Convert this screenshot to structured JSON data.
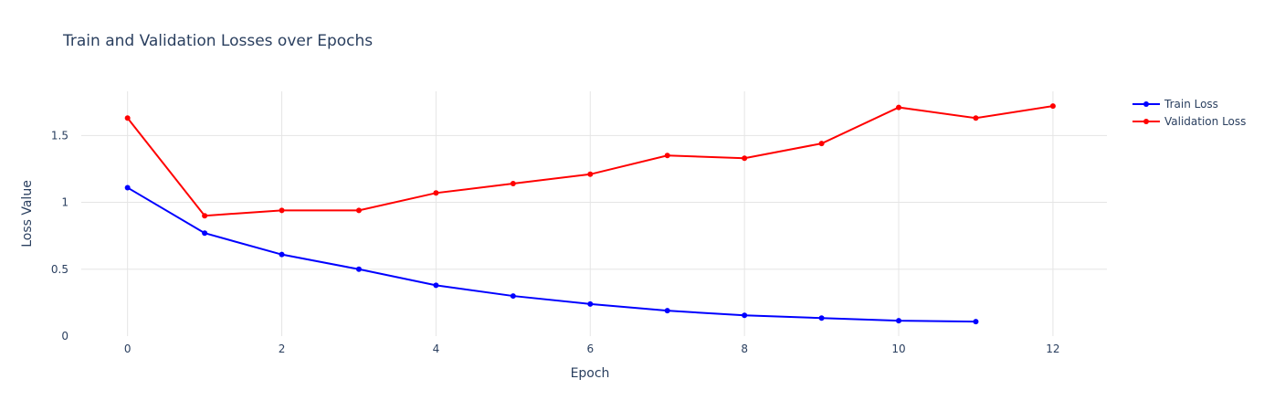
{
  "chart_data": {
    "type": "line",
    "title": "Train and Validation Losses over Epochs",
    "xlabel": "Epoch",
    "ylabel": "Loss Value",
    "xlim": [
      -0.6,
      12.7
    ],
    "ylim": [
      0,
      1.83
    ],
    "x_ticks": [
      0,
      2,
      4,
      6,
      8,
      10,
      12
    ],
    "x_tick_labels": [
      "0",
      "2",
      "4",
      "6",
      "8",
      "10",
      "12"
    ],
    "y_ticks": [
      0,
      0.5,
      1,
      1.5
    ],
    "y_tick_labels": [
      "0",
      "0.5",
      "1",
      "1.5"
    ],
    "grid": true,
    "legend_position": "top-right",
    "series": [
      {
        "name": "Train Loss",
        "color": "#0000ff",
        "x": [
          0,
          1,
          2,
          3,
          4,
          5,
          6,
          7,
          8,
          9,
          10,
          11
        ],
        "values": [
          1.11,
          0.77,
          0.61,
          0.5,
          0.38,
          0.3,
          0.24,
          0.19,
          0.155,
          0.135,
          0.115,
          0.108
        ]
      },
      {
        "name": "Validation Loss",
        "color": "#ff0000",
        "x": [
          0,
          1,
          2,
          3,
          4,
          5,
          6,
          7,
          8,
          9,
          10,
          11,
          12
        ],
        "values": [
          1.63,
          0.9,
          0.94,
          0.94,
          1.07,
          1.14,
          1.21,
          1.35,
          1.33,
          1.44,
          1.71,
          1.63,
          1.72
        ]
      }
    ]
  }
}
